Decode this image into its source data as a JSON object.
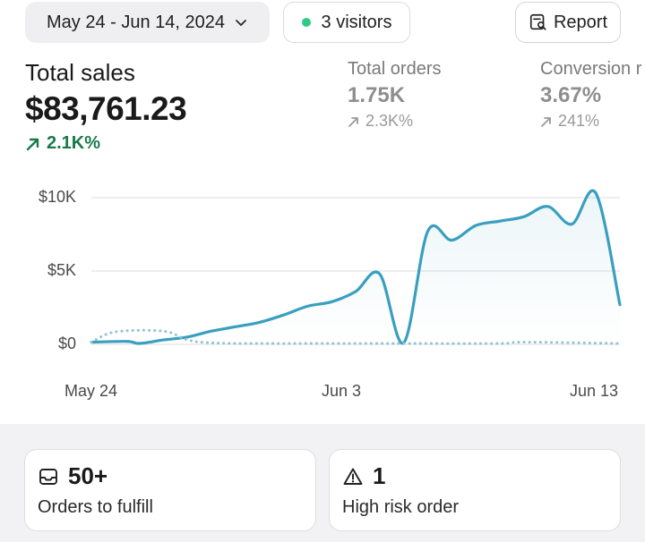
{
  "header": {
    "date_range": "May 24 - Jun 14, 2024",
    "visitors": "3 visitors",
    "report_label": "Report"
  },
  "metrics": {
    "total_sales": {
      "label": "Total sales",
      "value": "$83,761.23",
      "change": "2.1K%"
    },
    "total_orders": {
      "label": "Total orders",
      "value": "1.75K",
      "change": "2.3K%"
    },
    "conversion": {
      "label": "Conversion r",
      "value": "3.67%",
      "change": "241%"
    }
  },
  "chart_data": {
    "type": "line",
    "title": "Total sales",
    "y_ticks": [
      "$10K",
      "$5K",
      "$0"
    ],
    "y_tick_values": [
      10000,
      5000,
      0
    ],
    "x_ticks": [
      "May 24",
      "Jun 3",
      "Jun 13"
    ],
    "ylim": [
      0,
      10000
    ],
    "series": [
      {
        "name": "current",
        "color": "#3a9fbf",
        "style": "solid",
        "values": [
          [
            0,
            150
          ],
          [
            1.5,
            200
          ],
          [
            2,
            60
          ],
          [
            3,
            300
          ],
          [
            4,
            500
          ],
          [
            5,
            900
          ],
          [
            6,
            1200
          ],
          [
            7,
            1500
          ],
          [
            8,
            2000
          ],
          [
            9,
            2600
          ],
          [
            10,
            2900
          ],
          [
            11,
            3600
          ],
          [
            12,
            4800
          ],
          [
            13,
            100
          ],
          [
            14,
            7700
          ],
          [
            15,
            7100
          ],
          [
            16,
            8100
          ],
          [
            17,
            8400
          ],
          [
            18,
            8700
          ],
          [
            19,
            9400
          ],
          [
            20,
            8200
          ],
          [
            21,
            10300
          ],
          [
            22,
            2700
          ]
        ]
      },
      {
        "name": "comparison",
        "color": "#8fc3d6",
        "style": "dotted",
        "values": [
          [
            0,
            150
          ],
          [
            1,
            850
          ],
          [
            3,
            900
          ],
          [
            4,
            300
          ],
          [
            5,
            100
          ],
          [
            7,
            60
          ],
          [
            10,
            60
          ],
          [
            13,
            60
          ],
          [
            17,
            60
          ],
          [
            18,
            150
          ],
          [
            22,
            60
          ]
        ]
      }
    ],
    "x_min": 0,
    "x_max": 22
  },
  "cards": {
    "fulfill": {
      "count": "50+",
      "label": "Orders to fulfill"
    },
    "risk": {
      "count": "1",
      "label": "High risk order"
    }
  }
}
